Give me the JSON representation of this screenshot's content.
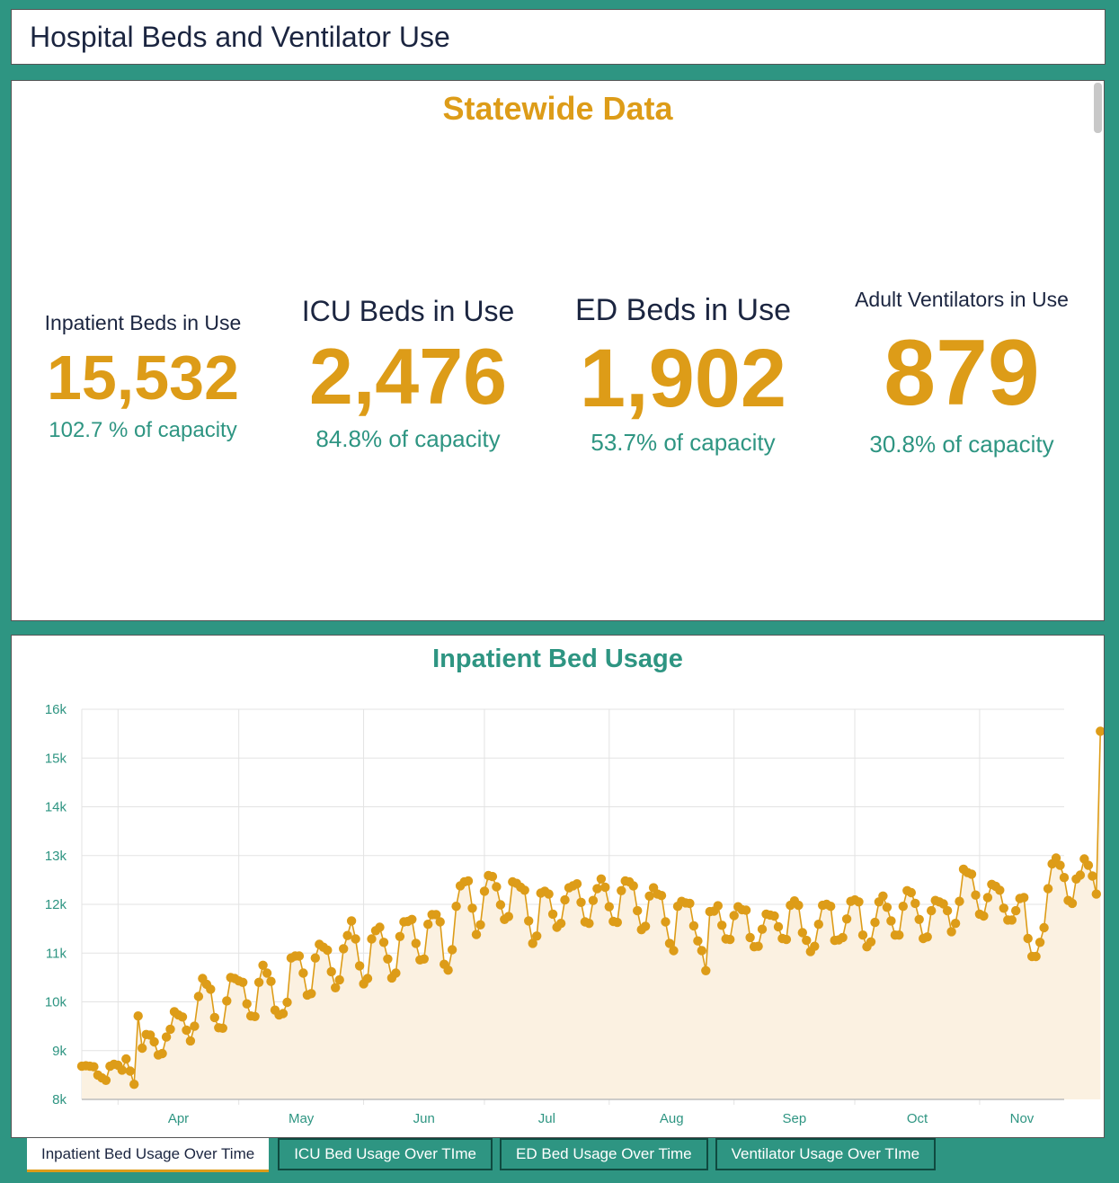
{
  "header": {
    "title": "Hospital Beds and Ventilator Use"
  },
  "stats": {
    "title": "Statewide Data",
    "items": [
      {
        "label": "Inpatient Beds in Use",
        "value": "15,532",
        "capacity": "102.7 % of capacity"
      },
      {
        "label": "ICU Beds in Use",
        "value": "2,476",
        "capacity": "84.8% of capacity"
      },
      {
        "label": "ED Beds in Use",
        "value": "1,902",
        "capacity": "53.7% of capacity"
      },
      {
        "label": "Adult Ventilators in Use",
        "value": "879",
        "capacity": "30.8% of capacity"
      }
    ]
  },
  "colors": {
    "background": "#2e9582",
    "accent": "#dd9c18",
    "teal": "#2e9582",
    "navy": "#1b2540",
    "area": "#fbf1e1"
  },
  "tabs": [
    {
      "label": "Inpatient Bed Usage Over Time",
      "active": true
    },
    {
      "label": "ICU Bed Usage Over TIme",
      "active": false
    },
    {
      "label": "ED Bed Usage Over Time",
      "active": false
    },
    {
      "label": "Ventilator Usage Over TIme",
      "active": false
    }
  ],
  "chart_data": {
    "type": "area",
    "title": "Inpatient Bed Usage",
    "xlabel": "",
    "ylabel": "",
    "ylim": [
      8000,
      16000
    ],
    "yticks": [
      8000,
      9000,
      10000,
      11000,
      12000,
      13000,
      14000,
      15000,
      16000
    ],
    "ytick_labels": [
      "8k",
      "9k",
      "10k",
      "11k",
      "12k",
      "13k",
      "14k",
      "15k",
      "16k"
    ],
    "xlim_days": [
      0,
      244
    ],
    "month_ticks": [
      {
        "label": "Apr",
        "day": 9
      },
      {
        "label": "May",
        "day": 39
      },
      {
        "label": "Jun",
        "day": 70
      },
      {
        "label": "Jul",
        "day": 100
      },
      {
        "label": "Aug",
        "day": 131
      },
      {
        "label": "Sep",
        "day": 162
      },
      {
        "label": "Oct",
        "day": 192
      },
      {
        "label": "Nov",
        "day": 223
      }
    ],
    "grid": true,
    "series": [
      {
        "name": "Inpatient Beds in Use",
        "x_start_day": 0,
        "values": [
          8680,
          8690,
          8680,
          8670,
          8500,
          8440,
          8390,
          8680,
          8720,
          8700,
          8600,
          8830,
          8580,
          8310,
          9710,
          9050,
          9330,
          9320,
          9180,
          8910,
          8940,
          9280,
          9440,
          9800,
          9730,
          9690,
          9420,
          9200,
          9500,
          10110,
          10480,
          10360,
          10260,
          9680,
          9470,
          9460,
          10020,
          10500,
          10480,
          10430,
          10400,
          9960,
          9710,
          9700,
          10400,
          10750,
          10590,
          10420,
          9830,
          9730,
          9760,
          9990,
          10900,
          10940,
          10940,
          10590,
          10140,
          10170,
          10900,
          11180,
          11120,
          11060,
          10620,
          10290,
          10450,
          11090,
          11360,
          11660,
          11290,
          10740,
          10370,
          10480,
          11290,
          11460,
          11530,
          11220,
          10880,
          10490,
          10590,
          11340,
          11640,
          11650,
          11690,
          11200,
          10860,
          10880,
          11590,
          11790,
          11790,
          11640,
          10770,
          10650,
          11070,
          11960,
          12380,
          12460,
          12480,
          11920,
          11380,
          11580,
          12270,
          12590,
          12570,
          12360,
          11990,
          11690,
          11750,
          12460,
          12430,
          12350,
          12290,
          11660,
          11200,
          11350,
          12230,
          12270,
          12210,
          11800,
          11530,
          11610,
          12090,
          12340,
          12380,
          12420,
          12040,
          11640,
          11610,
          12080,
          12320,
          12520,
          12350,
          11950,
          11650,
          11630,
          12280,
          12480,
          12460,
          12380,
          11870,
          11480,
          11550,
          12170,
          12340,
          12210,
          12180,
          11640,
          11200,
          11050,
          11960,
          12060,
          12030,
          12020,
          11560,
          11250,
          11050,
          10640,
          11850,
          11860,
          11970,
          11570,
          11290,
          11280,
          11770,
          11950,
          11890,
          11880,
          11320,
          11130,
          11140,
          11490,
          11800,
          11780,
          11760,
          11540,
          11300,
          11280,
          11980,
          12070,
          11980,
          11420,
          11260,
          11030,
          11140,
          11590,
          11980,
          12000,
          11960,
          11260,
          11270,
          11320,
          11700,
          12060,
          12090,
          12050,
          11370,
          11130,
          11230,
          11630,
          12050,
          12170,
          11940,
          11660,
          11370,
          11370,
          11960,
          12280,
          12240,
          12020,
          11690,
          11300,
          11330,
          11870,
          12080,
          12050,
          12010,
          11870,
          11440,
          11610,
          12060,
          12720,
          12650,
          12620,
          12190,
          11800,
          11760,
          12140,
          12410,
          12370,
          12290,
          11920,
          11680,
          11680,
          11870,
          12120,
          12140,
          11300,
          10930,
          10930,
          11220,
          11520,
          12320,
          12830,
          12950,
          12800,
          12550,
          12080,
          12020,
          12520,
          12600,
          12930,
          12800,
          12580,
          12210,
          15550
        ]
      }
    ]
  }
}
